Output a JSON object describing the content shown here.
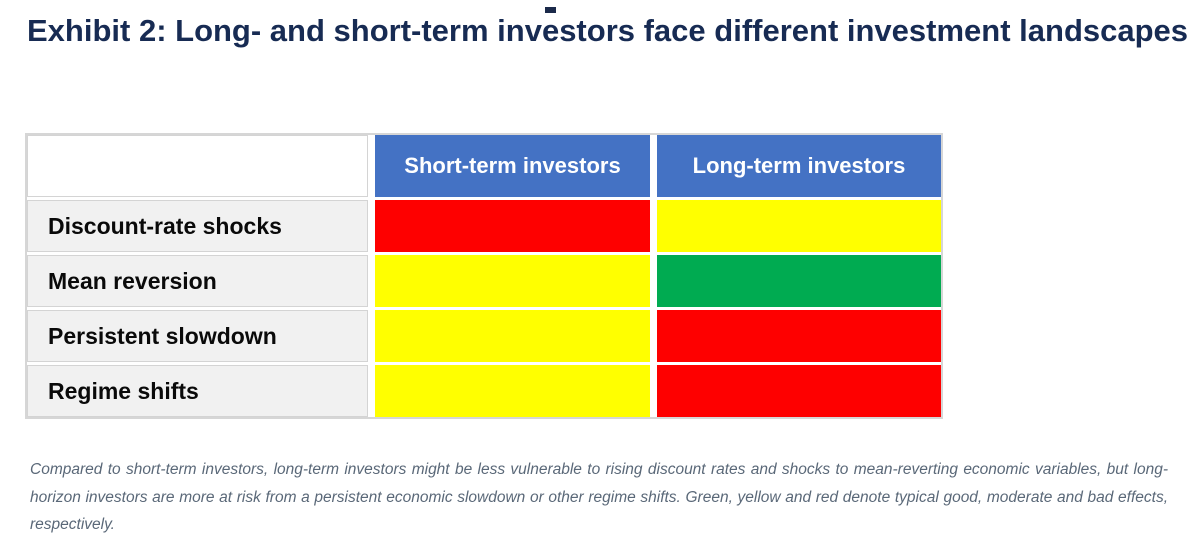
{
  "title": "Exhibit 2: Long- and short-term investors face different investment landscapes",
  "table": {
    "column_headers": [
      "Short-term investors",
      "Long-term investors"
    ],
    "rows": [
      {
        "label": "Discount-rate shocks",
        "cells": [
          "bad",
          "moderate"
        ]
      },
      {
        "label": "Mean reversion",
        "cells": [
          "moderate",
          "good"
        ]
      },
      {
        "label": "Persistent slowdown",
        "cells": [
          "moderate",
          "bad"
        ]
      },
      {
        "label": "Regime shifts",
        "cells": [
          "moderate",
          "bad"
        ]
      }
    ]
  },
  "colors": {
    "good": "#00AB51",
    "moderate": "#FFFF00",
    "bad": "#FE0000"
  },
  "theme": {
    "header_bg": "#4472C4",
    "header_text": "#FFFFFF",
    "title_text": "#172B53",
    "row_label_bg": "#F1F1F1",
    "table_border": "#D6D6D6",
    "footnote_text": "#5A6878"
  },
  "footnote": "Compared to short-term investors, long-term investors might be less vulnerable to rising discount rates and shocks to mean-reverting economic variables, but long-horizon investors are more at risk from a persistent economic slowdown or other regime shifts. Green, yellow and red denote typical good, moderate and bad effects, respectively.",
  "chart_data": {
    "type": "heatmap",
    "title": "Exhibit 2: Long- and short-term investors face different investment landscapes",
    "columns": [
      "Short-term investors",
      "Long-term investors"
    ],
    "rows": [
      "Discount-rate shocks",
      "Mean reversion",
      "Persistent slowdown",
      "Regime shifts"
    ],
    "values": [
      [
        "bad",
        "moderate"
      ],
      [
        "moderate",
        "good"
      ],
      [
        "moderate",
        "bad"
      ],
      [
        "moderate",
        "bad"
      ]
    ],
    "legend": {
      "good": "green = typical good effect",
      "moderate": "yellow = typical moderate effect",
      "bad": "red = typical bad effect"
    }
  }
}
